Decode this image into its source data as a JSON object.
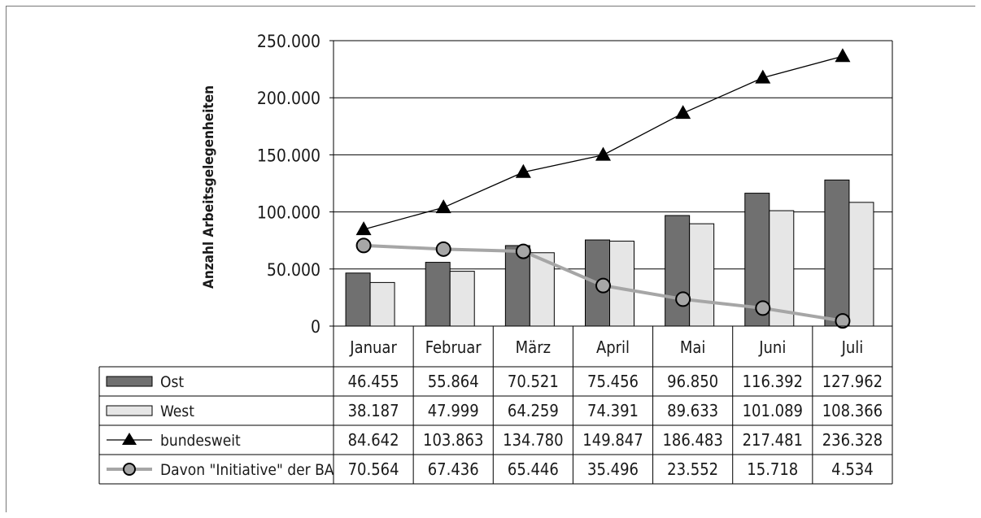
{
  "chart_data": {
    "type": "bar",
    "title": "",
    "ylabel": "Anzahl Arbeitsgelegenheiten",
    "xlabel": "",
    "ylim": [
      0,
      250000
    ],
    "y_ticks": [
      0,
      50000,
      100000,
      150000,
      200000,
      250000
    ],
    "y_tick_labels": [
      "0",
      "50.000",
      "100.000",
      "150.000",
      "200.000",
      "250.000"
    ],
    "grid": true,
    "legend": "data-table",
    "categories": [
      "Januar",
      "Februar",
      "März",
      "April",
      "Mai",
      "Juni",
      "Juli"
    ],
    "series": [
      {
        "name": "Ost",
        "kind": "bar",
        "color": "#707070",
        "values": [
          46455,
          55864,
          70521,
          75456,
          96850,
          116392,
          127962
        ],
        "labels": [
          "46.455",
          "55.864",
          "70.521",
          "75.456",
          "96.850",
          "116.392",
          "127.962"
        ]
      },
      {
        "name": "West",
        "kind": "bar",
        "color": "#e6e6e6",
        "values": [
          38187,
          47999,
          64259,
          74391,
          89633,
          101089,
          108366
        ],
        "labels": [
          "38.187",
          "47.999",
          "64.259",
          "74.391",
          "89.633",
          "101.089",
          "108.366"
        ]
      },
      {
        "name": "bundesweit",
        "kind": "line",
        "marker": "triangle",
        "color": "#000000",
        "values": [
          84642,
          103863,
          134780,
          149847,
          186483,
          217481,
          236328
        ],
        "labels": [
          "84.642",
          "103.863",
          "134.780",
          "149.847",
          "186.483",
          "217.481",
          "236.328"
        ]
      },
      {
        "name": "Davon \"Initiative\" der BA",
        "kind": "line",
        "marker": "circle",
        "color": "#a6a6a6",
        "values": [
          70564,
          67436,
          65446,
          35496,
          23552,
          15718,
          4534
        ],
        "labels": [
          "70.564",
          "67.436",
          "65.446",
          "35.496",
          "23.552",
          "15.718",
          "4.534"
        ]
      }
    ]
  }
}
